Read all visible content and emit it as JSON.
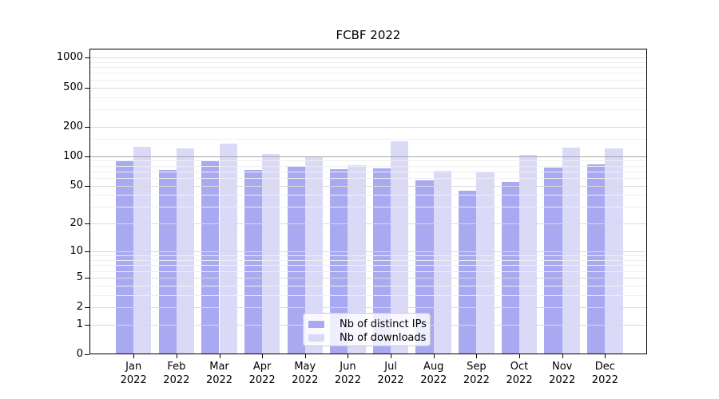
{
  "chart_data": {
    "type": "bar",
    "title": "FCBF 2022",
    "categories": [
      "Jan",
      "Feb",
      "Mar",
      "Apr",
      "May",
      "Jun",
      "Jul",
      "Aug",
      "Sep",
      "Oct",
      "Nov",
      "Dec"
    ],
    "year_label": "2022",
    "series": [
      {
        "name": "Nb of distinct IPs",
        "color": "#a9a9f2",
        "values": [
          91,
          72,
          91,
          73,
          80,
          74,
          75,
          57,
          44,
          55,
          77,
          82
        ]
      },
      {
        "name": "Nb of downloads",
        "color": "#dadaf8",
        "values": [
          124,
          119,
          135,
          106,
          100,
          81,
          142,
          71,
          70,
          104,
          123,
          121
        ]
      }
    ],
    "yscale": "log1p",
    "ylim": [
      0,
      1233
    ],
    "yticks": [
      0,
      1,
      2,
      5,
      10,
      20,
      50,
      100,
      200,
      500,
      1000
    ],
    "emphasized_gridline": 100,
    "minor_gridlines": [
      3,
      4,
      6,
      7,
      8,
      9,
      30,
      40,
      60,
      70,
      80,
      90,
      150,
      300,
      400,
      600,
      700,
      800,
      900
    ],
    "grid": true,
    "legend_position": "lower center"
  }
}
